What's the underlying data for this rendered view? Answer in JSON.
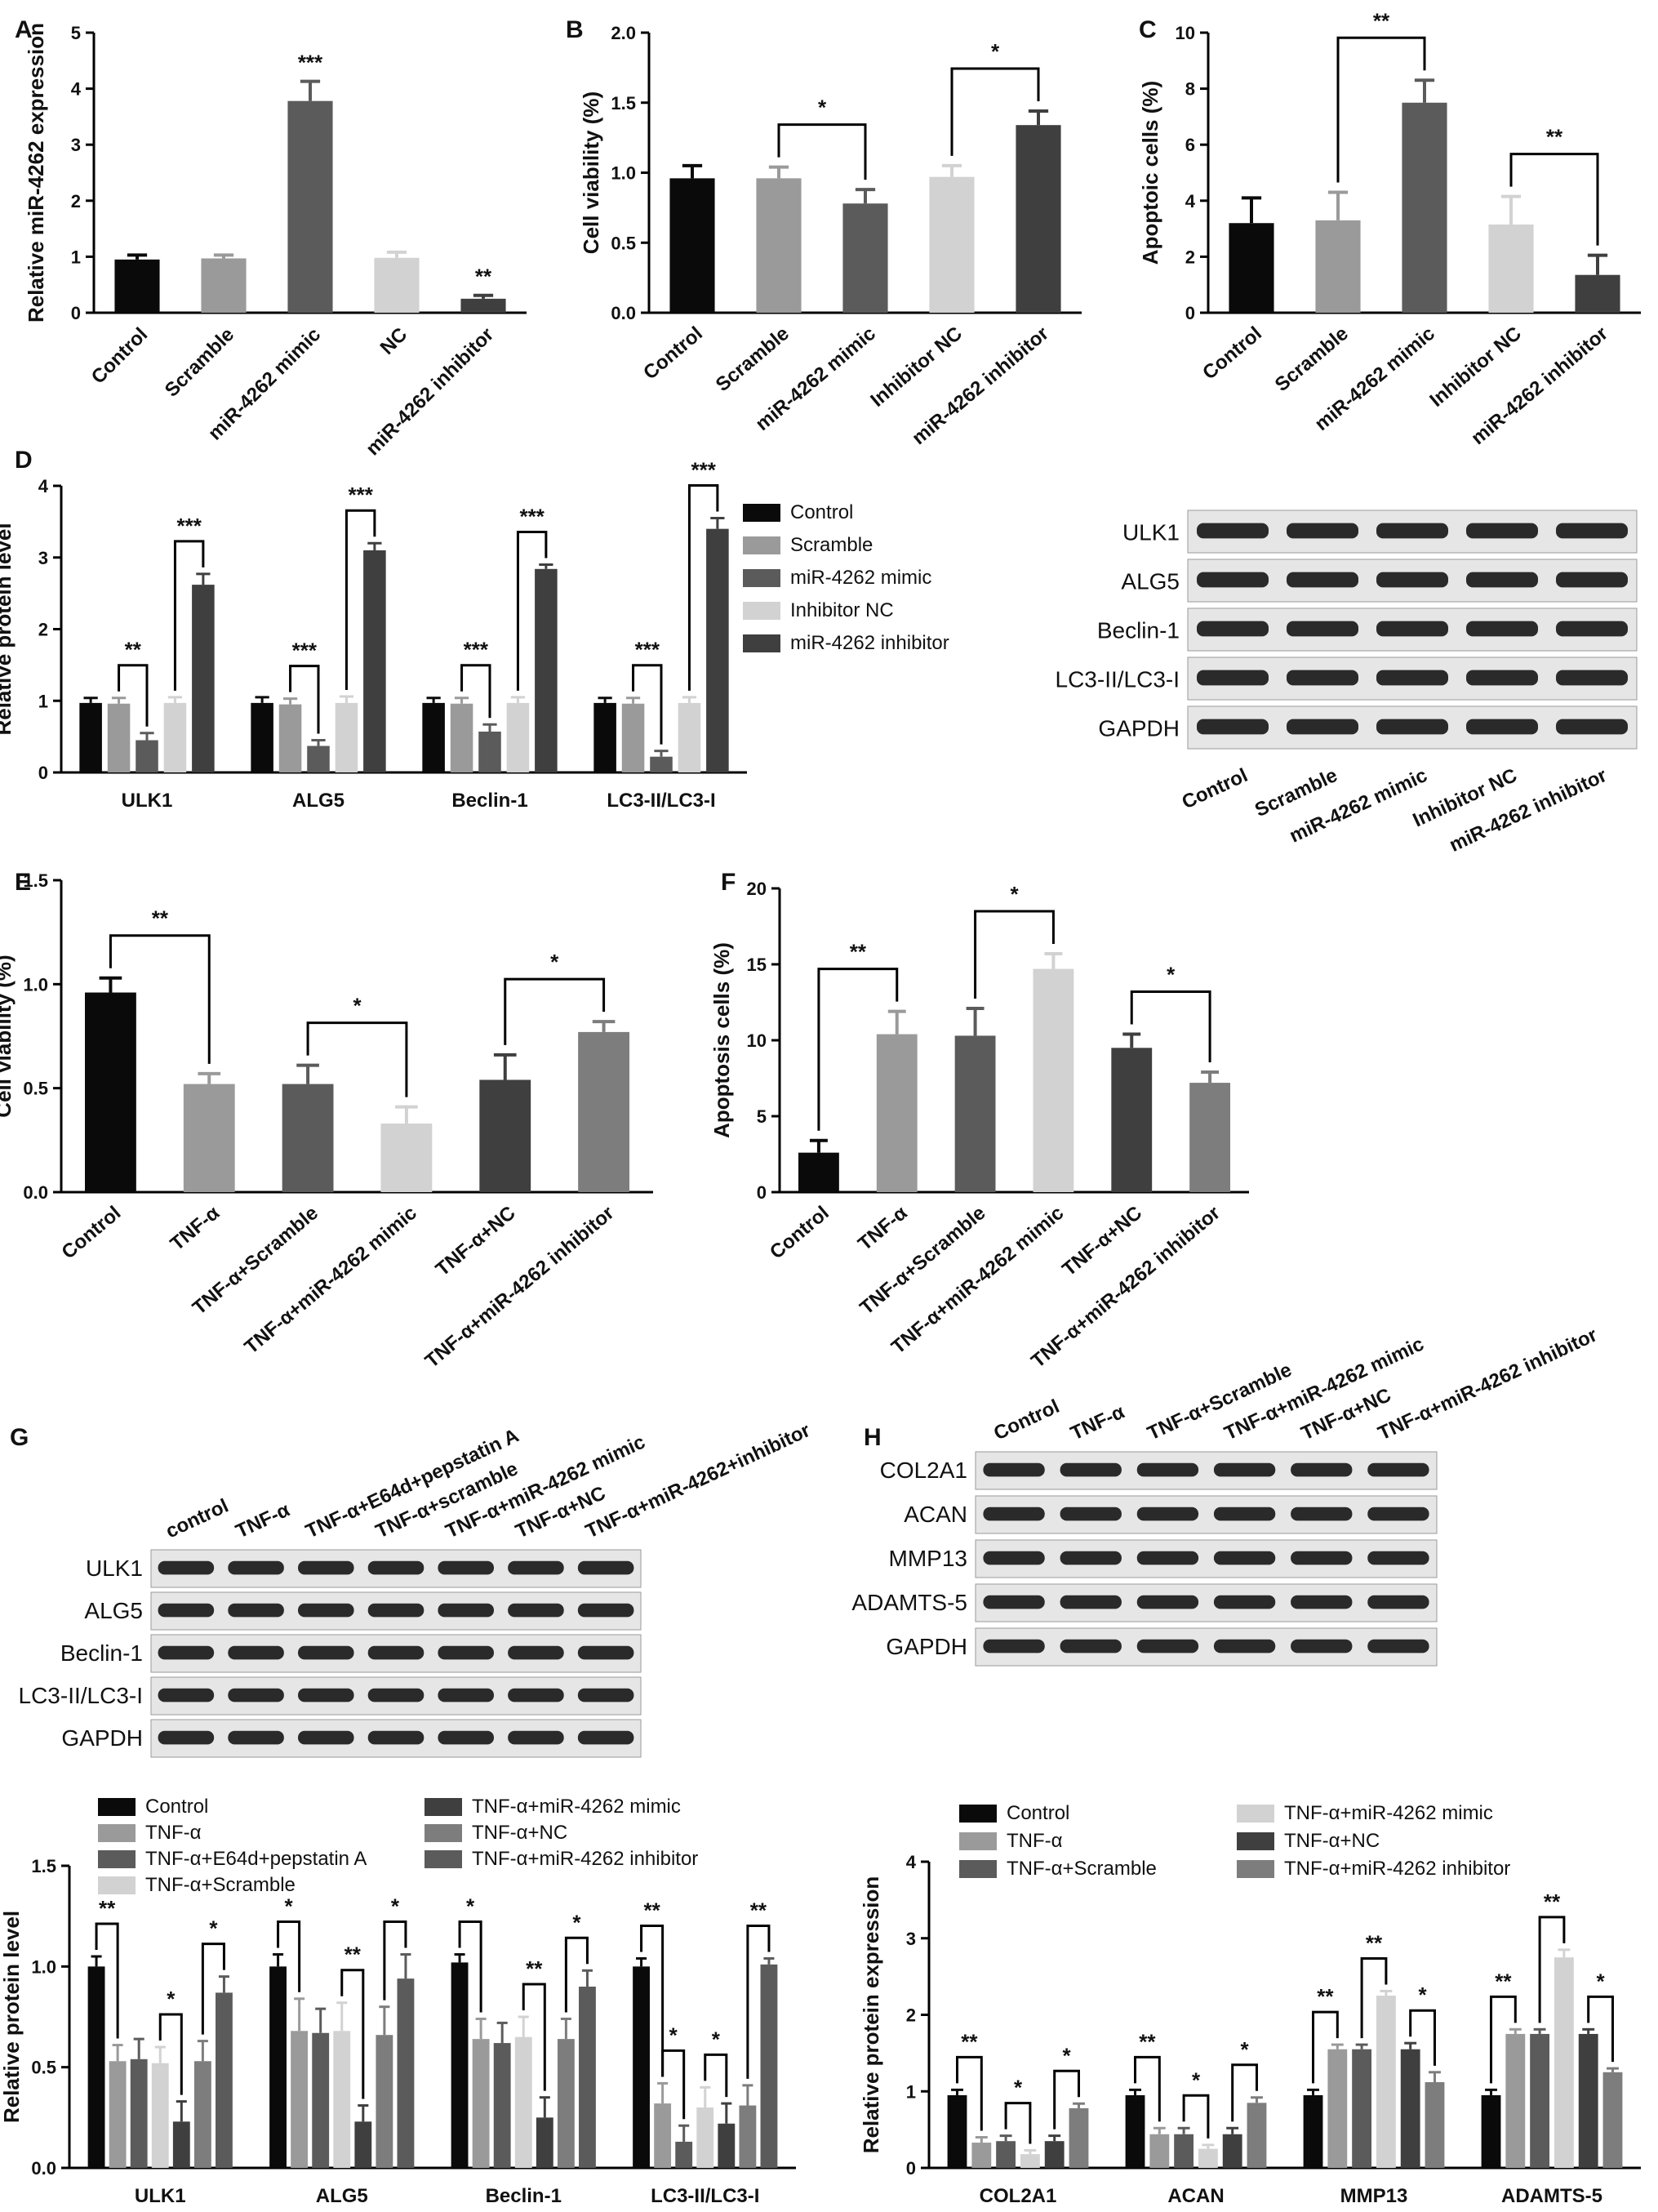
{
  "colors": {
    "black": "#0a0a0a",
    "dgray": "#5b5b5b",
    "mgray": "#7d7d7d",
    "lgray": "#9a9a9a",
    "vlgray": "#d2d2d2",
    "charcoal": "#3f3f3f"
  },
  "chart_data": [
    {
      "panel": "A",
      "type": "bar",
      "ylabel": "Relative miR-4262 expression",
      "ylim": [
        0,
        5
      ],
      "yticks": [
        0,
        1,
        2,
        3,
        4,
        5
      ],
      "categories": [
        "Control",
        "Scramble",
        "miR-4262 mimic",
        "NC",
        "miR-4262 inhibitor"
      ],
      "values": [
        0.95,
        0.97,
        3.78,
        0.98,
        0.25
      ],
      "errors": [
        0.08,
        0.06,
        0.35,
        0.1,
        0.06
      ],
      "colors": [
        "black",
        "lgray",
        "dgray",
        "vlgray",
        "charcoal"
      ],
      "annotations": [
        {
          "cat": 2,
          "text": "***"
        },
        {
          "cat": 4,
          "text": "**"
        }
      ]
    },
    {
      "panel": "B",
      "type": "bar",
      "ylabel": "Cell viability  (%)",
      "ylim": [
        0,
        2.0
      ],
      "yticks": [
        "0.0",
        "0.5",
        "1.0",
        "1.5",
        "2.0"
      ],
      "categories": [
        "Control",
        "Scramble",
        "miR-4262 mimic",
        "Inhibitor NC",
        "miR-4262 inhibitor"
      ],
      "values": [
        0.96,
        0.96,
        0.78,
        0.97,
        1.34
      ],
      "errors": [
        0.09,
        0.08,
        0.1,
        0.08,
        0.1
      ],
      "colors": [
        "black",
        "lgray",
        "dgray",
        "vlgray",
        "charcoal"
      ],
      "brackets": [
        {
          "a": 1,
          "b": 2,
          "text": "*"
        },
        {
          "a": 3,
          "b": 4,
          "text": "*"
        }
      ]
    },
    {
      "panel": "C",
      "type": "bar",
      "ylabel": "Apoptoic cells (%)",
      "ylim": [
        0,
        10
      ],
      "yticks": [
        0,
        2,
        4,
        6,
        8,
        10
      ],
      "categories": [
        "Control",
        "Scramble",
        "miR-4262 mimic",
        "Inhibitor NC",
        "miR-4262 inhibitor"
      ],
      "values": [
        3.2,
        3.3,
        7.5,
        3.15,
        1.35
      ],
      "errors": [
        0.9,
        1.0,
        0.8,
        1.0,
        0.7
      ],
      "colors": [
        "black",
        "lgray",
        "dgray",
        "vlgray",
        "charcoal"
      ],
      "brackets": [
        {
          "a": 1,
          "b": 2,
          "text": "**"
        },
        {
          "a": 3,
          "b": 4,
          "text": "**"
        }
      ]
    },
    {
      "panel": "D",
      "type": "bar",
      "ylabel": "Relative protein level",
      "ylim": [
        0,
        4
      ],
      "yticks": [
        0,
        1,
        2,
        3,
        4
      ],
      "categories": [
        "ULK1",
        "ALG5",
        "Beclin-1",
        "LC3-II/LC3-I"
      ],
      "series": [
        {
          "name": "Control",
          "color": "black",
          "values": [
            0.97,
            0.97,
            0.97,
            0.97
          ],
          "errors": [
            0.07,
            0.08,
            0.07,
            0.07
          ]
        },
        {
          "name": "Scramble",
          "color": "lgray",
          "values": [
            0.96,
            0.95,
            0.96,
            0.96
          ],
          "errors": [
            0.08,
            0.08,
            0.08,
            0.08
          ]
        },
        {
          "name": "miR-4262 mimic",
          "color": "dgray",
          "values": [
            0.45,
            0.37,
            0.57,
            0.22
          ],
          "errors": [
            0.1,
            0.08,
            0.1,
            0.08
          ]
        },
        {
          "name": "Inhibitor NC",
          "color": "vlgray",
          "values": [
            0.97,
            0.97,
            0.97,
            0.97
          ],
          "errors": [
            0.08,
            0.09,
            0.08,
            0.08
          ]
        },
        {
          "name": "miR-4262 inhibitor",
          "color": "charcoal",
          "values": [
            2.62,
            3.1,
            2.84,
            3.4
          ],
          "errors": [
            0.15,
            0.1,
            0.06,
            0.15
          ]
        }
      ],
      "brackets": [
        {
          "cat": 0,
          "a": 1,
          "b": 2,
          "text": "**"
        },
        {
          "cat": 0,
          "a": 3,
          "b": 4,
          "text": "***"
        },
        {
          "cat": 1,
          "a": 1,
          "b": 2,
          "text": "***"
        },
        {
          "cat": 1,
          "a": 3,
          "b": 4,
          "text": "***"
        },
        {
          "cat": 2,
          "a": 1,
          "b": 2,
          "text": "***"
        },
        {
          "cat": 2,
          "a": 3,
          "b": 4,
          "text": "***"
        },
        {
          "cat": 3,
          "a": 1,
          "b": 2,
          "text": "***"
        },
        {
          "cat": 3,
          "a": 3,
          "b": 4,
          "text": "***"
        }
      ]
    },
    {
      "panel": "E",
      "type": "bar",
      "ylabel": "Cell viability (%)",
      "ylim": [
        0,
        1.5
      ],
      "yticks": [
        "0.0",
        "0.5",
        "1.0",
        "1.5"
      ],
      "categories": [
        "Control",
        "TNF-α",
        "TNF-α+Scramble",
        "TNF-α+miR-4262 mimic",
        "TNF-α+NC",
        "TNF-α+miR-4262 inhibitor"
      ],
      "values": [
        0.96,
        0.52,
        0.52,
        0.33,
        0.54,
        0.77
      ],
      "errors": [
        0.07,
        0.05,
        0.09,
        0.08,
        0.12,
        0.05
      ],
      "colors": [
        "black",
        "lgray",
        "dgray",
        "vlgray",
        "charcoal",
        "mgray"
      ],
      "brackets": [
        {
          "a": 0,
          "b": 1,
          "text": "**"
        },
        {
          "a": 2,
          "b": 3,
          "text": "*"
        },
        {
          "a": 4,
          "b": 5,
          "text": "*"
        }
      ]
    },
    {
      "panel": "F",
      "type": "bar",
      "ylabel": "Apoptosis cells (%)",
      "ylim": [
        0,
        20
      ],
      "yticks": [
        0,
        5,
        10,
        15,
        20
      ],
      "categories": [
        "Control",
        "TNF-α",
        "TNF-α+Scramble",
        "TNF-α+miR-4262 mimic",
        "TNF-α+NC",
        "TNF-α+miR-4262 inhibitor"
      ],
      "values": [
        2.6,
        10.4,
        10.3,
        14.7,
        9.5,
        7.2
      ],
      "errors": [
        0.8,
        1.5,
        1.8,
        1.0,
        0.9,
        0.7
      ],
      "colors": [
        "black",
        "lgray",
        "dgray",
        "vlgray",
        "charcoal",
        "mgray"
      ],
      "brackets": [
        {
          "a": 0,
          "b": 1,
          "text": "**"
        },
        {
          "a": 2,
          "b": 3,
          "text": "*"
        },
        {
          "a": 4,
          "b": 5,
          "text": "*"
        }
      ]
    },
    {
      "panel": "G",
      "type": "bar",
      "ylabel": "Relative protein level",
      "ylim": [
        0,
        1.5
      ],
      "yticks": [
        "0.0",
        "0.5",
        "1.0",
        "1.5"
      ],
      "categories": [
        "ULK1",
        "ALG5",
        "Beclin-1",
        "LC3-II/LC3-I"
      ],
      "series": [
        {
          "name": "Control",
          "color": "black",
          "values": [
            1.0,
            1.0,
            1.02,
            1.0
          ],
          "errors": [
            0.05,
            0.06,
            0.04,
            0.04
          ]
        },
        {
          "name": "TNF-α",
          "color": "lgray",
          "values": [
            0.53,
            0.68,
            0.64,
            0.32
          ],
          "errors": [
            0.08,
            0.16,
            0.1,
            0.1
          ]
        },
        {
          "name": "TNF-α+E64d+pepstatin A",
          "color": "dgray",
          "values": [
            0.54,
            0.67,
            0.62,
            0.13
          ],
          "errors": [
            0.1,
            0.12,
            0.1,
            0.08
          ]
        },
        {
          "name": "TNF-α+Scramble",
          "color": "vlgray",
          "values": [
            0.52,
            0.68,
            0.65,
            0.3
          ],
          "errors": [
            0.08,
            0.14,
            0.1,
            0.1
          ]
        },
        {
          "name": "TNF-α+miR-4262 mimic",
          "color": "charcoal",
          "values": [
            0.23,
            0.23,
            0.25,
            0.22
          ],
          "errors": [
            0.1,
            0.08,
            0.1,
            0.1
          ]
        },
        {
          "name": "TNF-α+NC",
          "color": "mgray",
          "values": [
            0.53,
            0.66,
            0.64,
            0.31
          ],
          "errors": [
            0.1,
            0.14,
            0.1,
            0.1
          ]
        },
        {
          "name": "TNF-α+miR-4262 inhibitor",
          "color": "dgray",
          "values": [
            0.87,
            0.94,
            0.9,
            1.01
          ],
          "errors": [
            0.08,
            0.12,
            0.08,
            0.03
          ]
        }
      ],
      "brackets": [
        {
          "cat": 0,
          "a": 0,
          "b": 1,
          "text": "**"
        },
        {
          "cat": 0,
          "a": 3,
          "b": 4,
          "text": "*"
        },
        {
          "cat": 0,
          "a": 5,
          "b": 6,
          "text": "*"
        },
        {
          "cat": 1,
          "a": 0,
          "b": 1,
          "text": "*"
        },
        {
          "cat": 1,
          "a": 3,
          "b": 4,
          "text": "**"
        },
        {
          "cat": 1,
          "a": 5,
          "b": 6,
          "text": "*"
        },
        {
          "cat": 2,
          "a": 0,
          "b": 1,
          "text": "*"
        },
        {
          "cat": 2,
          "a": 3,
          "b": 4,
          "text": "**"
        },
        {
          "cat": 2,
          "a": 5,
          "b": 6,
          "text": "*"
        },
        {
          "cat": 3,
          "a": 0,
          "b": 1,
          "text": "**"
        },
        {
          "cat": 3,
          "a": 1,
          "b": 2,
          "text": "*"
        },
        {
          "cat": 3,
          "a": 3,
          "b": 4,
          "text": "*"
        },
        {
          "cat": 3,
          "a": 5,
          "b": 6,
          "text": "**"
        }
      ]
    },
    {
      "panel": "H",
      "type": "bar",
      "ylabel": "Relative protein expression",
      "ylim": [
        0,
        4
      ],
      "yticks": [
        0,
        1,
        2,
        3,
        4
      ],
      "categories": [
        "COL2A1",
        "ACAN",
        "MMP13",
        "ADAMTS-5"
      ],
      "series": [
        {
          "name": "Control",
          "color": "black",
          "values": [
            0.95,
            0.95,
            0.95,
            0.95
          ],
          "errors": [
            0.07,
            0.07,
            0.07,
            0.07
          ]
        },
        {
          "name": "TNF-α",
          "color": "lgray",
          "values": [
            0.33,
            0.44,
            1.55,
            1.75
          ],
          "errors": [
            0.07,
            0.08,
            0.06,
            0.06
          ]
        },
        {
          "name": "TNF-α+Scramble",
          "color": "dgray",
          "values": [
            0.35,
            0.44,
            1.55,
            1.75
          ],
          "errors": [
            0.07,
            0.08,
            0.06,
            0.06
          ]
        },
        {
          "name": "TNF-α+miR-4262 mimic",
          "color": "vlgray",
          "values": [
            0.18,
            0.25,
            2.25,
            2.75
          ],
          "errors": [
            0.05,
            0.05,
            0.06,
            0.1
          ]
        },
        {
          "name": "TNF-α+NC",
          "color": "charcoal",
          "values": [
            0.35,
            0.44,
            1.55,
            1.75
          ],
          "errors": [
            0.07,
            0.08,
            0.08,
            0.06
          ]
        },
        {
          "name": "TNF-α+miR-4262 inhibitor",
          "color": "mgray",
          "values": [
            0.78,
            0.85,
            1.12,
            1.25
          ],
          "errors": [
            0.06,
            0.07,
            0.13,
            0.05
          ]
        }
      ],
      "brackets": [
        {
          "cat": 0,
          "a": 0,
          "b": 1,
          "text": "**"
        },
        {
          "cat": 0,
          "a": 2,
          "b": 3,
          "text": "*"
        },
        {
          "cat": 0,
          "a": 4,
          "b": 5,
          "text": "*"
        },
        {
          "cat": 1,
          "a": 0,
          "b": 1,
          "text": "**"
        },
        {
          "cat": 1,
          "a": 2,
          "b": 3,
          "text": "*"
        },
        {
          "cat": 1,
          "a": 4,
          "b": 5,
          "text": "*"
        },
        {
          "cat": 2,
          "a": 0,
          "b": 1,
          "text": "**"
        },
        {
          "cat": 2,
          "a": 2,
          "b": 3,
          "text": "**"
        },
        {
          "cat": 2,
          "a": 4,
          "b": 5,
          "text": "*"
        },
        {
          "cat": 3,
          "a": 0,
          "b": 1,
          "text": "**"
        },
        {
          "cat": 3,
          "a": 2,
          "b": 3,
          "text": "**"
        },
        {
          "cat": 3,
          "a": 4,
          "b": 5,
          "text": "*"
        }
      ]
    }
  ],
  "blots": {
    "D": {
      "rows": [
        "ULK1",
        "ALG5",
        "Beclin-1",
        "LC3-II/LC3-I",
        "GAPDH"
      ],
      "lanes": [
        "Control",
        "Scramble",
        "miR-4262 mimic",
        "Inhibitor NC",
        "miR-4262 inhibitor"
      ]
    },
    "G": {
      "rows": [
        "ULK1",
        "ALG5",
        "Beclin-1",
        "LC3-II/LC3-I",
        "GAPDH"
      ],
      "lanes": [
        "control",
        "TNF-α",
        "TNF-α+E64d+pepstatin A",
        "TNF-α+scramble",
        "TNF-α+miR-4262 mimic",
        "TNF-α+NC",
        "TNF-α+miR-4262+inhibitor"
      ]
    },
    "H": {
      "rows": [
        "COL2A1",
        "ACAN",
        "MMP13",
        "ADAMTS-5",
        "GAPDH"
      ],
      "lanes": [
        "Control",
        "TNF-α",
        "TNF-α+Scramble",
        "TNF-α+miR-4262 mimic",
        "TNF-α+NC",
        "TNF-α+miR-4262 inhibitor"
      ]
    }
  }
}
